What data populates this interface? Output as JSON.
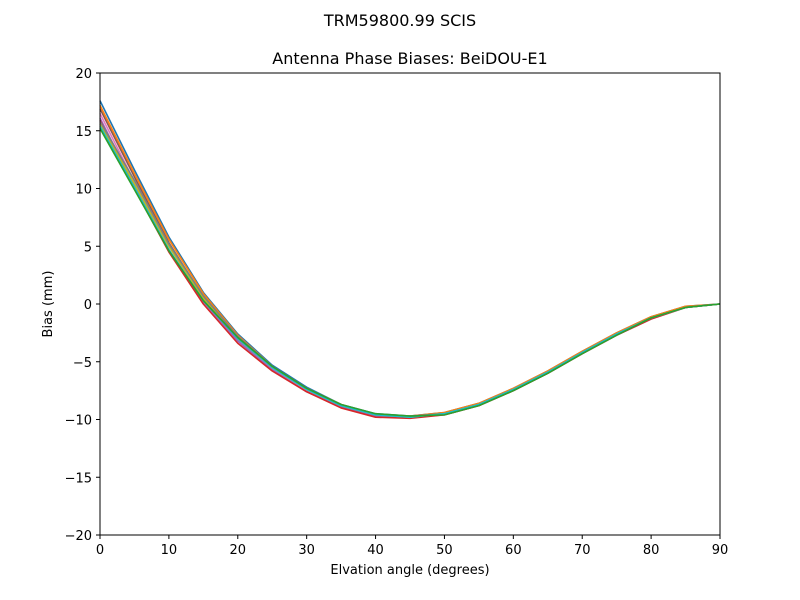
{
  "chart_data": {
    "type": "line",
    "suptitle": "TRM59800.99      SCIS",
    "title": "Antenna Phase Biases: BeiDOU-E1",
    "xlabel": "Elvation angle (degrees)",
    "ylabel": "Bias (mm)",
    "xlim": [
      0,
      90
    ],
    "ylim": [
      -20,
      20
    ],
    "xticks": [
      0,
      10,
      20,
      30,
      40,
      50,
      60,
      70,
      80,
      90
    ],
    "yticks": [
      -20,
      -15,
      -10,
      -5,
      0,
      5,
      10,
      15,
      20
    ],
    "ytick_labels": [
      "−20",
      "−15",
      "−10",
      "−5",
      "0",
      "5",
      "10",
      "15",
      "20"
    ],
    "grid": false,
    "x": [
      0,
      5,
      10,
      15,
      20,
      25,
      30,
      35,
      40,
      45,
      50,
      55,
      60,
      65,
      70,
      75,
      80,
      85,
      90
    ],
    "series": [
      {
        "color": "#1f77b4",
        "values": [
          17.6,
          11.6,
          5.8,
          1.0,
          -2.6,
          -5.3,
          -7.2,
          -8.7,
          -9.5,
          -9.7,
          -9.4,
          -8.6,
          -7.3,
          -5.8,
          -4.1,
          -2.5,
          -1.1,
          -0.2,
          0.0
        ]
      },
      {
        "color": "#ff7f0e",
        "values": [
          17.2,
          11.3,
          5.6,
          0.9,
          -2.7,
          -5.4,
          -7.3,
          -8.7,
          -9.6,
          -9.7,
          -9.4,
          -8.6,
          -7.3,
          -5.8,
          -4.1,
          -2.5,
          -1.1,
          -0.2,
          0.0
        ]
      },
      {
        "color": "#8c564b",
        "values": [
          16.9,
          11.0,
          5.3,
          0.6,
          -2.9,
          -5.5,
          -7.4,
          -8.8,
          -9.6,
          -9.8,
          -9.5,
          -8.7,
          -7.4,
          -5.9,
          -4.2,
          -2.6,
          -1.2,
          -0.3,
          0.0
        ]
      },
      {
        "color": "#e377c2",
        "values": [
          16.5,
          10.6,
          5.0,
          0.4,
          -3.1,
          -5.6,
          -7.5,
          -8.9,
          -9.7,
          -9.8,
          -9.5,
          -8.7,
          -7.4,
          -5.9,
          -4.2,
          -2.6,
          -1.2,
          -0.3,
          0.0
        ]
      },
      {
        "color": "#9467bd",
        "values": [
          16.1,
          10.2,
          4.7,
          0.2,
          -3.2,
          -5.7,
          -7.6,
          -8.9,
          -9.7,
          -9.8,
          -9.6,
          -8.8,
          -7.5,
          -6.0,
          -4.3,
          -2.7,
          -1.3,
          -0.3,
          0.0
        ]
      },
      {
        "color": "#d62728",
        "values": [
          15.9,
          10.0,
          4.5,
          0.0,
          -3.4,
          -5.8,
          -7.6,
          -9.0,
          -9.8,
          -9.9,
          -9.6,
          -8.8,
          -7.5,
          -6.0,
          -4.3,
          -2.7,
          -1.3,
          -0.3,
          0.0
        ]
      },
      {
        "color": "#bcbd22",
        "values": [
          15.6,
          10.4,
          5.0,
          0.5,
          -3.0,
          -5.5,
          -7.4,
          -8.8,
          -9.6,
          -9.8,
          -9.5,
          -8.7,
          -7.4,
          -5.9,
          -4.2,
          -2.6,
          -1.2,
          -0.3,
          0.0
        ]
      },
      {
        "color": "#7f7f7f",
        "values": [
          15.8,
          10.7,
          5.2,
          0.7,
          -2.8,
          -5.4,
          -7.3,
          -8.7,
          -9.6,
          -9.7,
          -9.5,
          -8.7,
          -7.4,
          -5.9,
          -4.2,
          -2.6,
          -1.2,
          -0.3,
          0.0
        ]
      },
      {
        "color": "#17becf",
        "values": [
          15.4,
          10.1,
          4.7,
          0.3,
          -3.0,
          -5.5,
          -7.4,
          -8.8,
          -9.6,
          -9.8,
          -9.5,
          -8.7,
          -7.4,
          -5.9,
          -4.2,
          -2.6,
          -1.2,
          -0.3,
          0.0
        ]
      },
      {
        "color": "#2ca02c",
        "values": [
          15.2,
          9.9,
          4.6,
          0.3,
          -2.9,
          -5.4,
          -7.3,
          -8.7,
          -9.5,
          -9.7,
          -9.6,
          -8.8,
          -7.5,
          -6.0,
          -4.3,
          -2.7,
          -1.2,
          -0.3,
          0.0
        ]
      }
    ]
  }
}
